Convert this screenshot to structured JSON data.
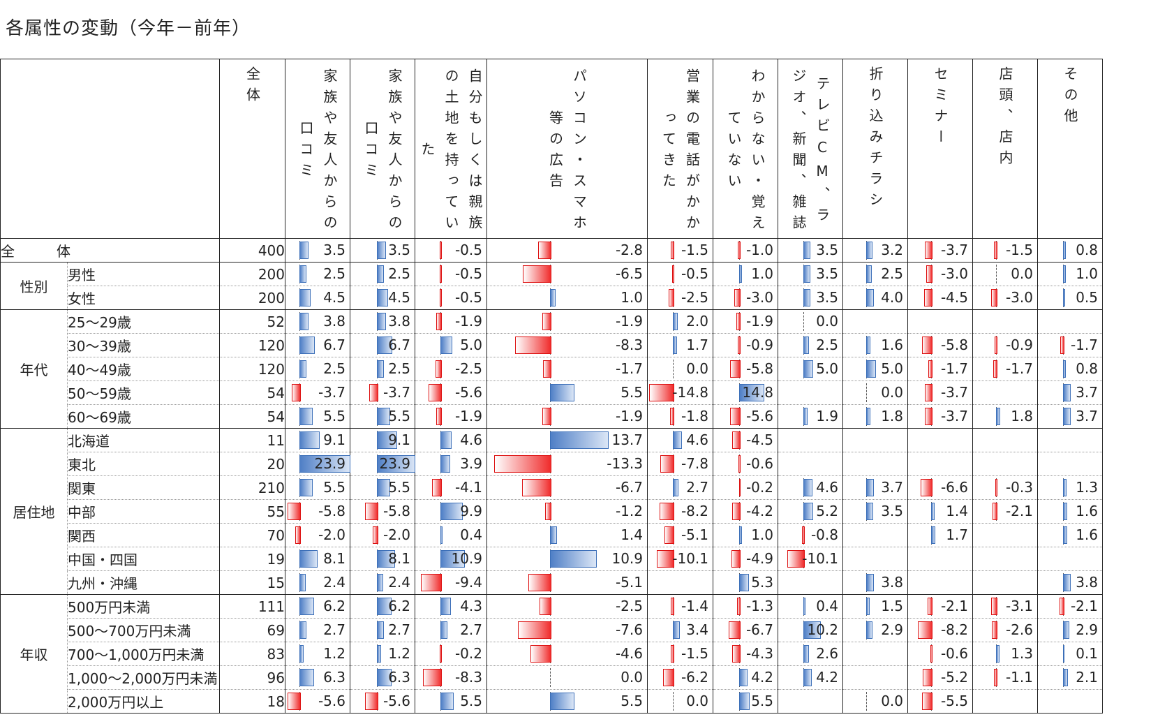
{
  "title": "各属性の変動（今年－前年）",
  "chart_data": {
    "type": "table",
    "columns": [
      {
        "key": "total",
        "label": "全体"
      },
      {
        "key": "c1",
        "label": "家族や友人からの口コミ"
      },
      {
        "key": "c2",
        "label": "家族や友人からの口コミ"
      },
      {
        "key": "c3",
        "label": "自分もしくは親族の土地を持っていた"
      },
      {
        "key": "c4",
        "label": "パソコン・スマホ等の広告"
      },
      {
        "key": "c5",
        "label": "営業の電話がかかってきた"
      },
      {
        "key": "c6",
        "label": "わからない・覚えていない"
      },
      {
        "key": "c7",
        "label": "テレビCM、ラジオ、新聞、雑誌"
      },
      {
        "key": "c8",
        "label": "折り込みチラシ"
      },
      {
        "key": "c9",
        "label": "セミナー"
      },
      {
        "key": "c10",
        "label": "店頭、店内"
      },
      {
        "key": "c11",
        "label": "その他"
      }
    ],
    "rows": [
      {
        "group": "全　体",
        "label": "",
        "n": "400",
        "values": [
          "3.5",
          "3.5",
          "-0.5",
          "-2.8",
          "-1.5",
          "-1.0",
          "3.5",
          "3.2",
          "-3.7",
          "-1.5",
          "0.8"
        ]
      },
      {
        "group": "性別",
        "label": "男性",
        "n": "200",
        "values": [
          "2.5",
          "2.5",
          "-0.5",
          "-6.5",
          "-0.5",
          "1.0",
          "3.5",
          "2.5",
          "-3.0",
          "0.0",
          "1.0"
        ]
      },
      {
        "group": "",
        "label": "女性",
        "n": "200",
        "values": [
          "4.5",
          "4.5",
          "-0.5",
          "1.0",
          "-2.5",
          "-3.0",
          "3.5",
          "4.0",
          "-4.5",
          "-3.0",
          "0.5"
        ]
      },
      {
        "group": "年代",
        "label": "25～29歳",
        "n": "52",
        "values": [
          "3.8",
          "3.8",
          "-1.9",
          "-1.9",
          "2.0",
          "-1.9",
          "0.0",
          "",
          "",
          "",
          ""
        ]
      },
      {
        "group": "",
        "label": "30～39歳",
        "n": "120",
        "values": [
          "6.7",
          "6.7",
          "5.0",
          "-8.3",
          "1.7",
          "-0.9",
          "2.5",
          "1.6",
          "-5.8",
          "-0.9",
          "-1.7"
        ]
      },
      {
        "group": "",
        "label": "40～49歳",
        "n": "120",
        "values": [
          "2.5",
          "2.5",
          "-2.5",
          "-1.7",
          "0.0",
          "-5.8",
          "5.0",
          "5.0",
          "-1.7",
          "-1.7",
          "0.8"
        ]
      },
      {
        "group": "",
        "label": "50～59歳",
        "n": "54",
        "values": [
          "-3.7",
          "-3.7",
          "-5.6",
          "5.5",
          "-14.8",
          "14.8",
          "",
          "0.0",
          "-3.7",
          "",
          "3.7"
        ]
      },
      {
        "group": "",
        "label": "60～69歳",
        "n": "54",
        "values": [
          "5.5",
          "5.5",
          "-1.9",
          "-1.9",
          "-1.8",
          "-5.6",
          "1.9",
          "1.8",
          "-3.7",
          "1.8",
          "3.7"
        ]
      },
      {
        "group": "居住地",
        "label": "北海道",
        "n": "11",
        "values": [
          "9.1",
          "9.1",
          "4.6",
          "13.7",
          "4.6",
          "-4.5",
          "",
          "",
          "",
          "",
          ""
        ]
      },
      {
        "group": "",
        "label": "東北",
        "n": "20",
        "values": [
          "23.9",
          "23.9",
          "3.9",
          "-13.3",
          "-7.8",
          "-0.6",
          "",
          "",
          "",
          "",
          ""
        ]
      },
      {
        "group": "",
        "label": "関東",
        "n": "210",
        "values": [
          "5.5",
          "5.5",
          "-4.1",
          "-6.7",
          "2.7",
          "-0.2",
          "4.6",
          "3.7",
          "-6.6",
          "-0.3",
          "1.3"
        ]
      },
      {
        "group": "",
        "label": "中部",
        "n": "55",
        "values": [
          "-5.8",
          "-5.8",
          "9.9",
          "-1.2",
          "-8.2",
          "-4.2",
          "5.2",
          "3.5",
          "1.4",
          "-2.1",
          "1.6"
        ]
      },
      {
        "group": "",
        "label": "関西",
        "n": "70",
        "values": [
          "-2.0",
          "-2.0",
          "0.4",
          "1.4",
          "-5.1",
          "1.0",
          "-0.8",
          "",
          "1.7",
          "",
          "1.6"
        ]
      },
      {
        "group": "",
        "label": "中国・四国",
        "n": "19",
        "values": [
          "8.1",
          "8.1",
          "10.9",
          "10.9",
          "-10.1",
          "-4.9",
          "-10.1",
          "",
          "",
          "",
          ""
        ]
      },
      {
        "group": "",
        "label": "九州・沖縄",
        "n": "15",
        "values": [
          "2.4",
          "2.4",
          "-9.4",
          "-5.1",
          "",
          "5.3",
          "",
          "3.8",
          "",
          "",
          "3.8"
        ]
      },
      {
        "group": "年収",
        "label": "500万円未満",
        "n": "111",
        "values": [
          "6.2",
          "6.2",
          "4.3",
          "-2.5",
          "-1.4",
          "-1.3",
          "0.4",
          "1.5",
          "-2.1",
          "-3.1",
          "-2.1"
        ]
      },
      {
        "group": "",
        "label": "500～700万円未満",
        "n": "69",
        "values": [
          "2.7",
          "2.7",
          "2.7",
          "-7.6",
          "3.4",
          "-6.7",
          "10.2",
          "2.9",
          "-8.2",
          "-2.6",
          "2.9"
        ]
      },
      {
        "group": "",
        "label": "700～1,000万円未満",
        "n": "83",
        "values": [
          "1.2",
          "1.2",
          "-0.2",
          "-4.6",
          "-1.5",
          "-4.3",
          "2.6",
          "",
          "-0.6",
          "1.3",
          "0.1"
        ]
      },
      {
        "group": "",
        "label": "1,000～2,000万円未満",
        "n": "96",
        "values": [
          "6.3",
          "6.3",
          "-8.3",
          "0.0",
          "-6.2",
          "4.2",
          "4.2",
          "",
          "-5.2",
          "-1.1",
          "2.1"
        ]
      },
      {
        "group": "",
        "label": "2,000万円以上",
        "n": "18",
        "values": [
          "-5.6",
          "-5.6",
          "5.5",
          "5.5",
          "0.0",
          "5.5",
          "",
          "0.0",
          "-5.5",
          "",
          ""
        ]
      }
    ]
  }
}
